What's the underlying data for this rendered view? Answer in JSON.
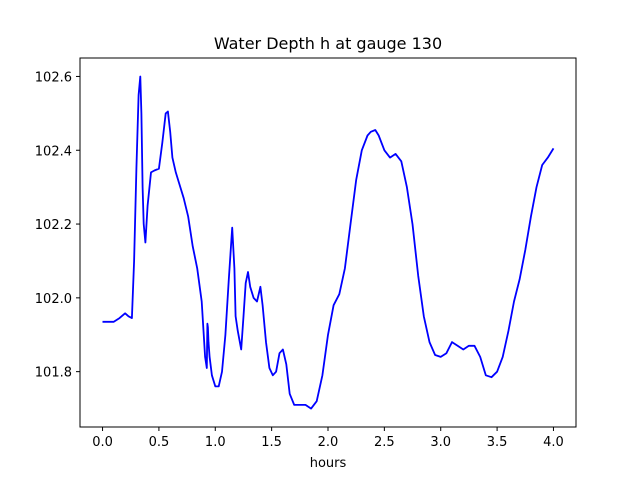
{
  "chart_data": {
    "type": "line",
    "title": "Water Depth h at gauge 130",
    "xlabel": "hours",
    "ylabel": "",
    "xlim": [
      -0.2,
      4.2
    ],
    "ylim": [
      101.65,
      102.65
    ],
    "xticks": [
      0.0,
      0.5,
      1.0,
      1.5,
      2.0,
      2.5,
      3.0,
      3.5,
      4.0
    ],
    "xtick_labels": [
      "0.0",
      "0.5",
      "1.0",
      "1.5",
      "2.0",
      "2.5",
      "3.0",
      "3.5",
      "4.0"
    ],
    "yticks": [
      101.8,
      102.0,
      102.2,
      102.4,
      102.6
    ],
    "ytick_labels": [
      "101.8",
      "102.0",
      "102.2",
      "102.4",
      "102.6"
    ],
    "grid": false,
    "legend": "none",
    "series": [
      {
        "color": "#0000ff",
        "x": [
          0.0,
          0.1,
          0.15,
          0.2,
          0.23,
          0.26,
          0.28,
          0.3,
          0.32,
          0.335,
          0.345,
          0.355,
          0.365,
          0.38,
          0.4,
          0.43,
          0.46,
          0.5,
          0.53,
          0.56,
          0.58,
          0.6,
          0.62,
          0.65,
          0.68,
          0.72,
          0.76,
          0.8,
          0.84,
          0.88,
          0.91,
          0.925,
          0.93,
          0.935,
          0.94,
          0.95,
          0.97,
          1.0,
          1.03,
          1.06,
          1.09,
          1.12,
          1.15,
          1.17,
          1.18,
          1.2,
          1.23,
          1.25,
          1.27,
          1.29,
          1.31,
          1.34,
          1.37,
          1.4,
          1.42,
          1.45,
          1.48,
          1.51,
          1.54,
          1.57,
          1.6,
          1.63,
          1.66,
          1.7,
          1.75,
          1.8,
          1.85,
          1.9,
          1.95,
          2.0,
          2.05,
          2.1,
          2.15,
          2.2,
          2.25,
          2.3,
          2.35,
          2.38,
          2.42,
          2.45,
          2.5,
          2.55,
          2.6,
          2.65,
          2.7,
          2.75,
          2.8,
          2.85,
          2.9,
          2.95,
          3.0,
          3.05,
          3.1,
          3.15,
          3.2,
          3.25,
          3.3,
          3.35,
          3.4,
          3.45,
          3.5,
          3.55,
          3.6,
          3.65,
          3.7,
          3.75,
          3.8,
          3.85,
          3.9,
          3.95,
          4.0
        ],
        "y": [
          101.935,
          101.935,
          101.945,
          101.958,
          101.95,
          101.945,
          102.1,
          102.35,
          102.55,
          102.6,
          102.5,
          102.3,
          102.2,
          102.15,
          102.25,
          102.34,
          102.345,
          102.35,
          102.42,
          102.5,
          102.505,
          102.45,
          102.38,
          102.34,
          102.31,
          102.27,
          102.22,
          102.14,
          102.08,
          101.99,
          101.84,
          101.81,
          101.93,
          101.92,
          101.88,
          101.84,
          101.79,
          101.76,
          101.76,
          101.8,
          101.9,
          102.05,
          102.19,
          102.08,
          101.95,
          101.91,
          101.86,
          101.95,
          102.04,
          102.07,
          102.03,
          102.0,
          101.99,
          102.03,
          101.98,
          101.88,
          101.81,
          101.79,
          101.8,
          101.85,
          101.86,
          101.82,
          101.74,
          101.71,
          101.71,
          101.71,
          101.7,
          101.72,
          101.79,
          101.9,
          101.98,
          102.01,
          102.08,
          102.2,
          102.32,
          102.4,
          102.44,
          102.45,
          102.455,
          102.44,
          102.4,
          102.38,
          102.39,
          102.37,
          102.3,
          102.2,
          102.06,
          101.95,
          101.88,
          101.845,
          101.84,
          101.85,
          101.88,
          101.87,
          101.86,
          101.87,
          101.87,
          101.84,
          101.79,
          101.785,
          101.8,
          101.84,
          101.91,
          101.99,
          102.05,
          102.13,
          102.22,
          102.3,
          102.36,
          102.38,
          102.405
        ]
      }
    ]
  }
}
